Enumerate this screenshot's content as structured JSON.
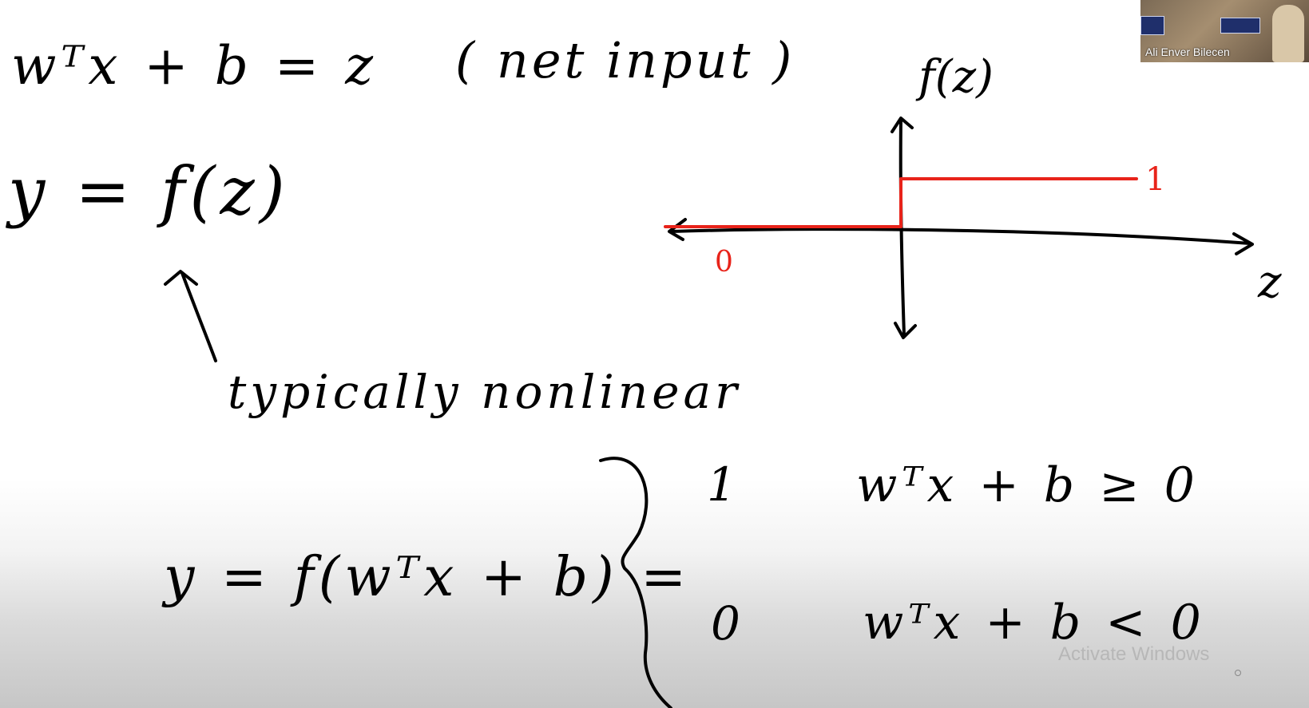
{
  "equations": {
    "net_input": "wᵀx + b  =  z",
    "net_input_note": "( net input )",
    "activation": "y = f(z)",
    "annotation": "typically nonlinear",
    "piecewise_lhs": "y = f(wᵀx + b) ="
  },
  "piecewise": {
    "case1_value": "1",
    "case1_condition": "wᵀx + b  ≥  0",
    "case2_value": "0",
    "case2_condition": "wᵀx + b  <  0"
  },
  "graph": {
    "y_axis_label": "f(z)",
    "x_axis_label": "z",
    "high_value": "1",
    "low_value": "0",
    "step_color": "#e8231a",
    "chart_data": {
      "type": "line",
      "title": "",
      "xlabel": "z",
      "ylabel": "f(z)",
      "series": [
        {
          "name": "step",
          "x": [
            -1,
            0,
            0,
            1
          ],
          "y": [
            0,
            0,
            1,
            1
          ]
        }
      ]
    }
  },
  "webcam": {
    "name": "Ali Enver Bilecen"
  },
  "watermark": {
    "text": "Activate Windows"
  }
}
